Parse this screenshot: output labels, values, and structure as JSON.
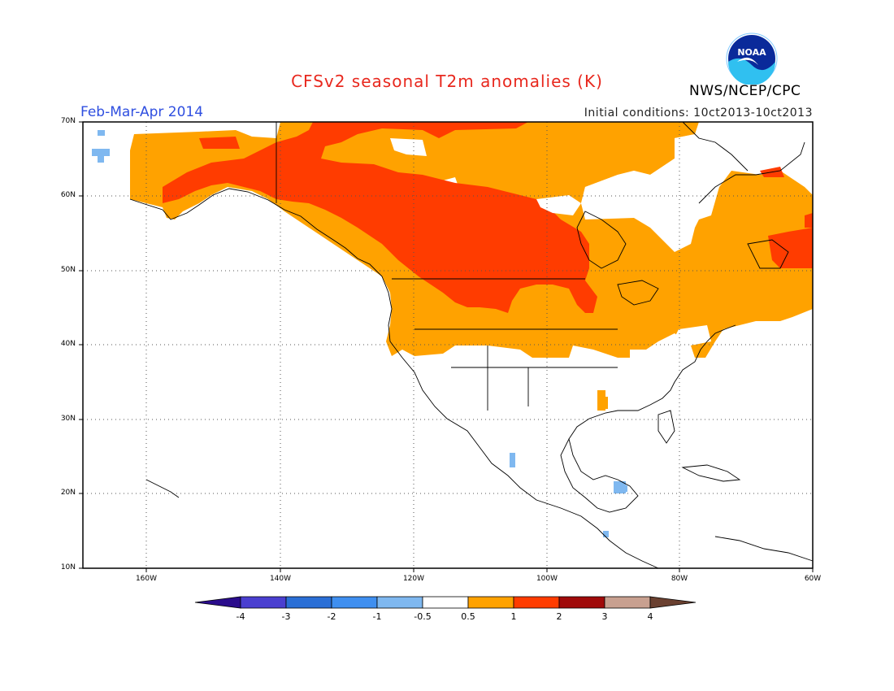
{
  "title": "CFSv2 seasonal T2m anomalies (K)",
  "period": "Feb-Mar-Apr 2014",
  "initial_conditions": "Initial conditions: 10ct2013-10ct2013",
  "agency": "NWS/NCEP/CPC",
  "logo_text": "NOAA",
  "lat_labels": [
    "70N",
    "60N",
    "50N",
    "40N",
    "30N",
    "20N",
    "10N"
  ],
  "lon_labels": [
    "160W",
    "140W",
    "120W",
    "100W",
    "80W",
    "60W"
  ],
  "colorbar": {
    "labels": [
      "-4",
      "-3",
      "-2",
      "-1",
      "-0.5",
      "0.5",
      "1",
      "2",
      "3",
      "4"
    ],
    "colors": [
      "#2a0c8c",
      "#4a3fd0",
      "#2a6fd6",
      "#3f8ff0",
      "#7fb8f0",
      "#ffffff",
      "#ffa200",
      "#ff3c00",
      "#a00a0a",
      "#c8a090",
      "#6a4030"
    ]
  },
  "colors": {
    "warm_05_1": "#ffa200",
    "warm_1_2": "#ff3c00",
    "cool_05_1": "#7fb8f0",
    "title": "#e8281e",
    "period": "#2f4fe0"
  }
}
